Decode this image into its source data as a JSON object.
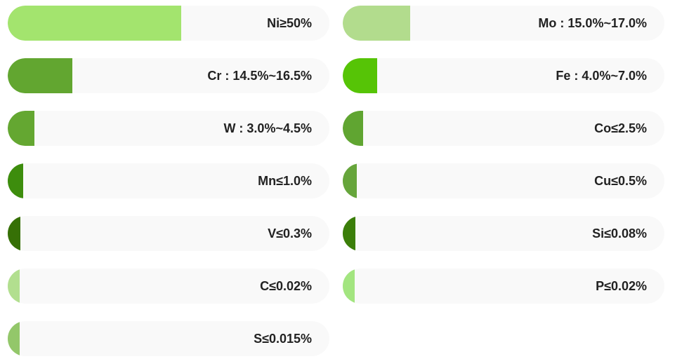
{
  "chart_data": {
    "type": "bar",
    "orientation": "horizontal",
    "items": [
      {
        "label": "Ni≥50%",
        "value": 0.54,
        "color": "#a3e46e"
      },
      {
        "label": "Mo : 15.0%~17.0%",
        "value": 0.21,
        "color": "#b2dc8d"
      },
      {
        "label": "Cr : 14.5%~16.5%",
        "value": 0.2,
        "color": "#62a630"
      },
      {
        "label": "Fe : 4.0%~7.0%",
        "value": 0.107,
        "color": "#56c406"
      },
      {
        "label": "W : 3.0%~4.5%",
        "value": 0.083,
        "color": "#64a731"
      },
      {
        "label": "Co≤2.5%",
        "value": 0.064,
        "color": "#60a531"
      },
      {
        "label": "Mn≤1.0%",
        "value": 0.048,
        "color": "#3d8d0d"
      },
      {
        "label": "Cu≤0.5%",
        "value": 0.044,
        "color": "#66a53b"
      },
      {
        "label": "V≤0.3%",
        "value": 0.039,
        "color": "#367006"
      },
      {
        "label": "Si≤0.08%",
        "value": 0.039,
        "color": "#3b7e09"
      },
      {
        "label": "C≤0.02%",
        "value": 0.037,
        "color": "#b2df8f"
      },
      {
        "label": "P≤0.02%",
        "value": 0.037,
        "color": "#a3e580"
      },
      {
        "label": "S≤0.015%",
        "value": 0.037,
        "color": "#93c76a"
      }
    ]
  }
}
